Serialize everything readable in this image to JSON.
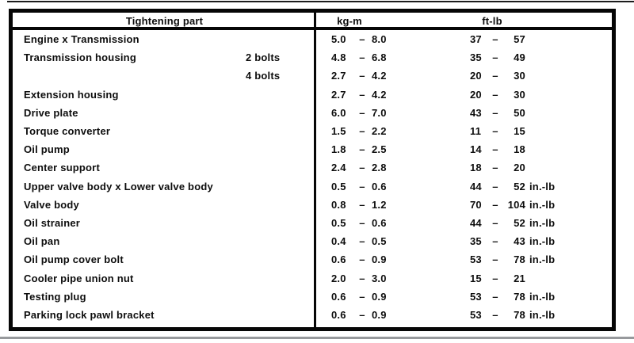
{
  "table": {
    "headers": {
      "part": "Tightening part",
      "kgm": "kg-m",
      "ftlb": "ft-lb"
    },
    "dash": "–",
    "rows": [
      {
        "part": "Engine x Transmission",
        "sub": "",
        "kg_lo": "5.0",
        "kg_hi": "8.0",
        "ft_lo": "37",
        "ft_hi": "57",
        "ft_unit": ""
      },
      {
        "part": "Transmission housing",
        "sub": "2 bolts",
        "kg_lo": "4.8",
        "kg_hi": "6.8",
        "ft_lo": "35",
        "ft_hi": "49",
        "ft_unit": ""
      },
      {
        "part": "",
        "sub": "4 bolts",
        "kg_lo": "2.7",
        "kg_hi": "4.2",
        "ft_lo": "20",
        "ft_hi": "30",
        "ft_unit": ""
      },
      {
        "part": "Extension housing",
        "sub": "",
        "kg_lo": "2.7",
        "kg_hi": "4.2",
        "ft_lo": "20",
        "ft_hi": "30",
        "ft_unit": ""
      },
      {
        "part": "Drive plate",
        "sub": "",
        "kg_lo": "6.0",
        "kg_hi": "7.0",
        "ft_lo": "43",
        "ft_hi": "50",
        "ft_unit": ""
      },
      {
        "part": "Torque converter",
        "sub": "",
        "kg_lo": "1.5",
        "kg_hi": "2.2",
        "ft_lo": "11",
        "ft_hi": "15",
        "ft_unit": ""
      },
      {
        "part": "Oil pump",
        "sub": "",
        "kg_lo": "1.8",
        "kg_hi": "2.5",
        "ft_lo": "14",
        "ft_hi": "18",
        "ft_unit": ""
      },
      {
        "part": "Center support",
        "sub": "",
        "kg_lo": "2.4",
        "kg_hi": "2.8",
        "ft_lo": "18",
        "ft_hi": "20",
        "ft_unit": ""
      },
      {
        "part": "Upper valve body x Lower valve body",
        "sub": "",
        "kg_lo": "0.5",
        "kg_hi": "0.6",
        "ft_lo": "44",
        "ft_hi": "52",
        "ft_unit": "in.-lb"
      },
      {
        "part": "Valve body",
        "sub": "",
        "kg_lo": "0.8",
        "kg_hi": "1.2",
        "ft_lo": "70",
        "ft_hi": "104",
        "ft_unit": "in.-lb"
      },
      {
        "part": "Oil strainer",
        "sub": "",
        "kg_lo": "0.5",
        "kg_hi": "0.6",
        "ft_lo": "44",
        "ft_hi": "52",
        "ft_unit": "in.-lb"
      },
      {
        "part": "Oil pan",
        "sub": "",
        "kg_lo": "0.4",
        "kg_hi": "0.5",
        "ft_lo": "35",
        "ft_hi": "43",
        "ft_unit": "in.-lb"
      },
      {
        "part": "Oil pump cover bolt",
        "sub": "",
        "kg_lo": "0.6",
        "kg_hi": "0.9",
        "ft_lo": "53",
        "ft_hi": "78",
        "ft_unit": "in.-lb"
      },
      {
        "part": "Cooler pipe union nut",
        "sub": "",
        "kg_lo": "2.0",
        "kg_hi": "3.0",
        "ft_lo": "15",
        "ft_hi": "21",
        "ft_unit": ""
      },
      {
        "part": "Testing plug",
        "sub": "",
        "kg_lo": "0.6",
        "kg_hi": "0.9",
        "ft_lo": "53",
        "ft_hi": "78",
        "ft_unit": "in.-lb"
      },
      {
        "part": "Parking lock pawl bracket",
        "sub": "",
        "kg_lo": "0.6",
        "kg_hi": "0.9",
        "ft_lo": "53",
        "ft_hi": "78",
        "ft_unit": "in.-lb"
      }
    ]
  }
}
